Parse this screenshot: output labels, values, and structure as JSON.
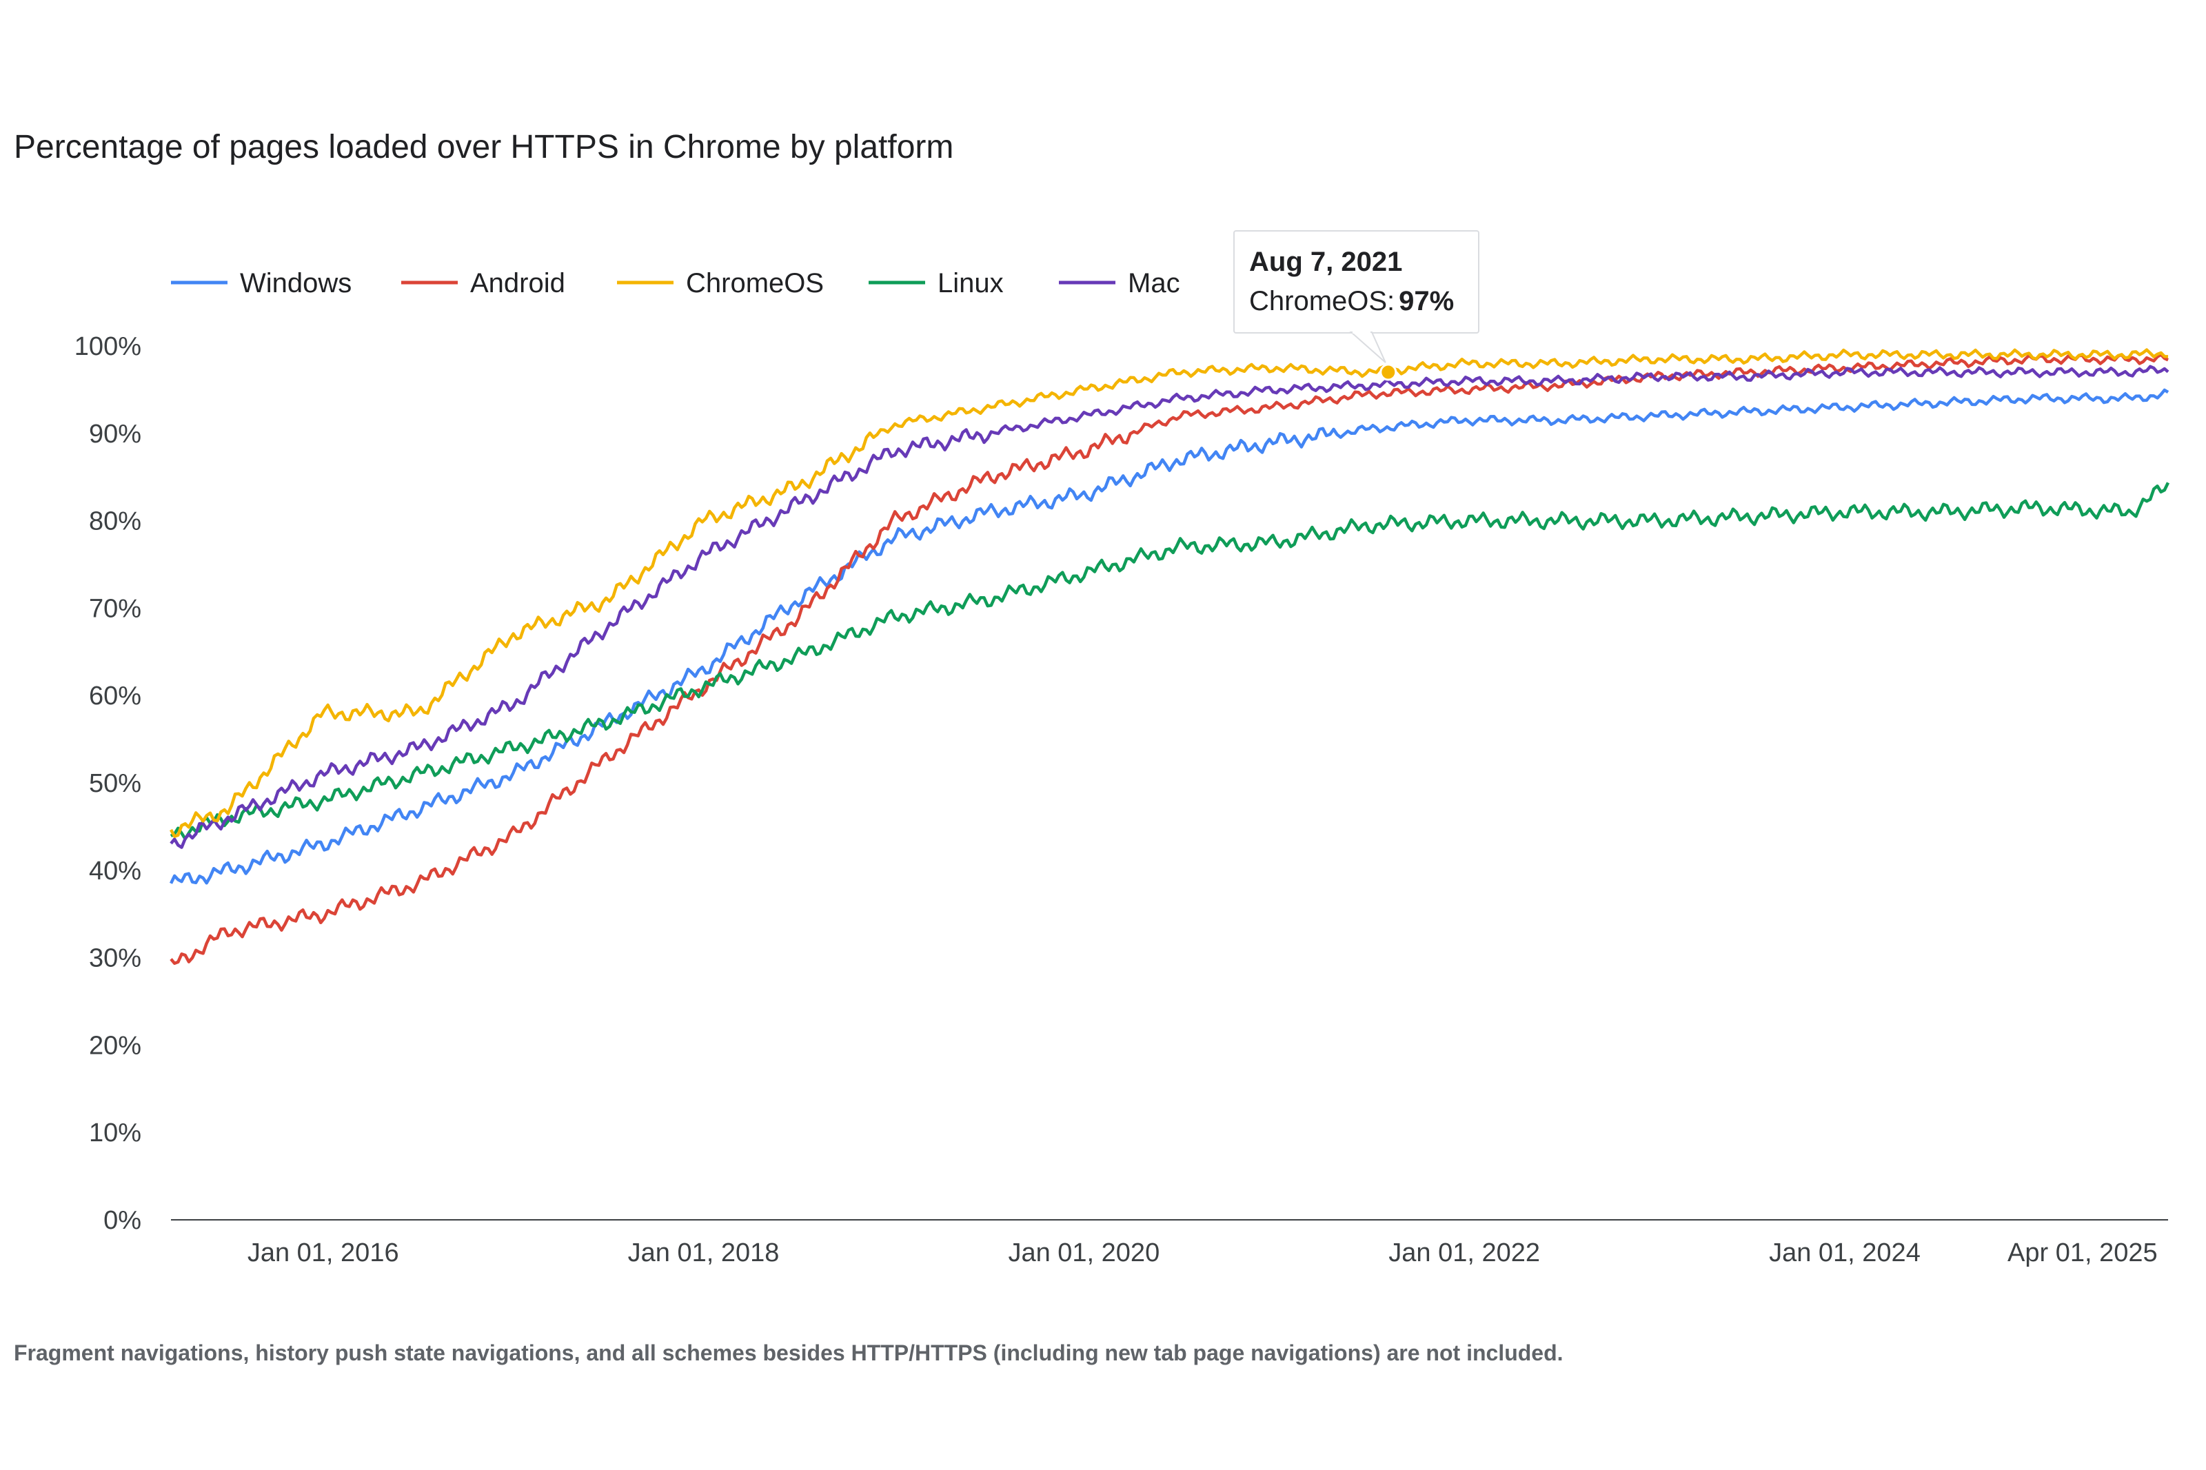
{
  "chart_data": {
    "type": "line",
    "title": "Percentage of pages loaded over HTTPS in Chrome by platform",
    "footnote": "Fragment navigations, history push state navigations, and all schemes besides HTTP/HTTPS (including new tab page navigations) are not included.",
    "xlabel": "",
    "ylabel": "",
    "xlim": [
      2015.2,
      2025.7
    ],
    "ylim": [
      0,
      100
    ],
    "y_ticks": [
      0,
      10,
      20,
      30,
      40,
      50,
      60,
      70,
      80,
      90,
      100
    ],
    "y_tick_labels": [
      "0%",
      "10%",
      "20%",
      "30%",
      "40%",
      "50%",
      "60%",
      "70%",
      "80%",
      "90%",
      "100%"
    ],
    "x_ticks": [
      2016.0,
      2018.0,
      2020.0,
      2022.0,
      2024.0,
      2025.25
    ],
    "x_tick_labels": [
      "Jan 01, 2016",
      "Jan 01, 2018",
      "Jan 01, 2020",
      "Jan 01, 2022",
      "Jan 01, 2024",
      "Apr 01, 2025"
    ],
    "grid": false,
    "legend_position": "top-left",
    "x": [
      2015.2,
      2015.5,
      2016.0,
      2016.5,
      2017.0,
      2017.5,
      2018.0,
      2018.5,
      2019.0,
      2019.5,
      2020.0,
      2020.5,
      2021.0,
      2021.5,
      2022.0,
      2022.5,
      2023.0,
      2023.5,
      2024.0,
      2024.5,
      2025.0,
      2025.5,
      2025.7
    ],
    "series": [
      {
        "name": "Windows",
        "color": "#4285F4",
        "values": [
          38.5,
          40,
          43,
          47,
          51,
          57,
          63,
          71,
          78,
          81,
          83,
          87,
          89,
          90.5,
          91.5,
          91.5,
          92,
          92.5,
          93,
          93.5,
          94,
          94,
          94.5
        ]
      },
      {
        "name": "Android",
        "color": "#DB4437",
        "values": [
          29,
          33,
          35,
          38.5,
          44,
          53,
          61,
          69,
          80,
          85,
          88,
          92,
          93,
          94.5,
          95,
          95.5,
          96.5,
          97,
          97.5,
          98,
          98.5,
          98.5,
          98.5
        ]
      },
      {
        "name": "ChromeOS",
        "color": "#F4B400",
        "values": [
          44.5,
          47,
          58,
          58,
          67,
          71,
          80,
          84,
          91,
          93,
          95,
          97,
          97.5,
          97,
          98,
          98,
          98.5,
          98.5,
          99,
          99,
          99,
          99,
          99.2
        ]
      },
      {
        "name": "Linux",
        "color": "#0F9D58",
        "values": [
          44,
          46,
          48,
          51,
          54,
          57,
          61,
          64.5,
          69,
          71,
          74,
          77,
          77.5,
          79.5,
          80,
          80,
          80,
          80.5,
          81,
          81,
          81.5,
          81,
          84
        ]
      },
      {
        "name": "Mac",
        "color": "#673AB7",
        "values": [
          43,
          46,
          51,
          54,
          59,
          68,
          76,
          82,
          88,
          90,
          92,
          94,
          95,
          95.5,
          96,
          96,
          96.5,
          96.5,
          97,
          97,
          97,
          97,
          97.3
        ]
      }
    ],
    "annotations": [
      {
        "x": 2021.6,
        "series": "ChromeOS",
        "date_label": "Aug 7, 2021",
        "series_label": "ChromeOS:",
        "value_label": "97%",
        "value": 97
      }
    ]
  }
}
